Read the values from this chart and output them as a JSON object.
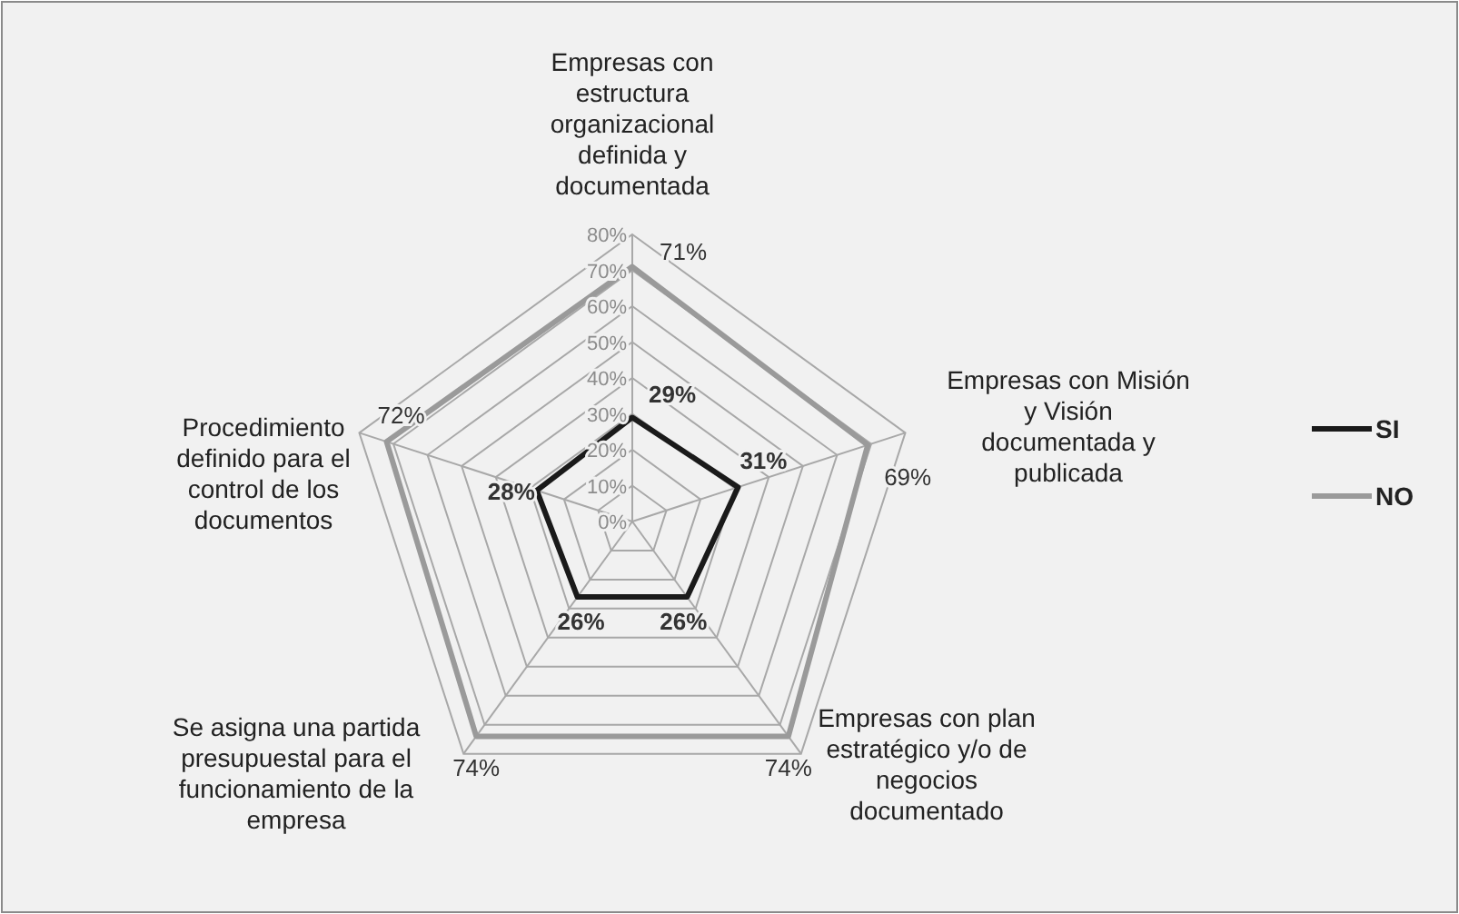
{
  "chart_data": {
    "type": "radar",
    "categories": [
      "Empresas  con estructura organizacional definida y documentada",
      "Empresas con Misión y Visión documentada y publicada",
      "Empresas  con plan estratégico y/o de negocios documentado",
      "Se asigna una  partida presupuestal para el funcionamiento de la empresa",
      "Procedimiento definido para el control de los documentos"
    ],
    "series": [
      {
        "name": "SI",
        "color": "#1a1a1a",
        "values": [
          29,
          31,
          26,
          26,
          28
        ],
        "value_labels": [
          "29%",
          "31%",
          "26%",
          "26%",
          "28%"
        ]
      },
      {
        "name": "NO",
        "color": "#9a9a9a",
        "values": [
          71,
          69,
          74,
          74,
          72
        ],
        "value_labels": [
          "71%",
          "69%",
          "74%",
          "74%",
          "72%"
        ]
      }
    ],
    "ylim": [
      0,
      80
    ],
    "yticks": [
      {
        "value": 0,
        "label": "0%"
      },
      {
        "value": 10,
        "label": "10%"
      },
      {
        "value": 20,
        "label": "20%"
      },
      {
        "value": 30,
        "label": "30%"
      },
      {
        "value": 40,
        "label": "40%"
      },
      {
        "value": 50,
        "label": "50%"
      },
      {
        "value": 60,
        "label": "60%"
      },
      {
        "value": 70,
        "label": "70%"
      },
      {
        "value": 80,
        "label": "80%"
      }
    ],
    "grid": true,
    "legend": "right",
    "marker": "none",
    "line_style": "solid"
  }
}
